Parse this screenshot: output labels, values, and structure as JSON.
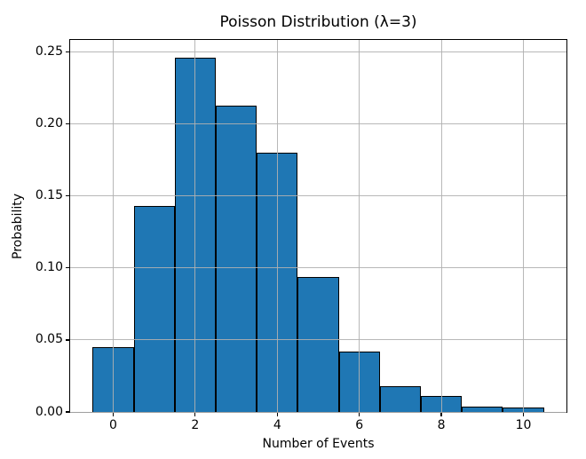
{
  "chart_data": {
    "type": "bar",
    "title": "Poisson Distribution (λ=3)",
    "xlabel": "Number of Events",
    "ylabel": "Probability",
    "categories": [
      0,
      1,
      2,
      3,
      4,
      5,
      6,
      7,
      8,
      9,
      10
    ],
    "values": [
      0.045,
      0.143,
      0.246,
      0.213,
      0.18,
      0.094,
      0.042,
      0.018,
      0.011,
      0.004,
      0.003
    ],
    "bar_width": 1.0,
    "bar_align": "center",
    "xlim": [
      -1.05,
      11.05
    ],
    "ylim": [
      0,
      0.2585
    ],
    "x_ticks": [
      0,
      2,
      4,
      6,
      8,
      10
    ],
    "x_tick_labels": [
      "0",
      "2",
      "4",
      "6",
      "8",
      "10"
    ],
    "y_ticks": [
      0.0,
      0.05,
      0.1,
      0.15,
      0.2,
      0.25
    ],
    "y_tick_labels": [
      "0.00",
      "0.05",
      "0.10",
      "0.15",
      "0.20",
      "0.25"
    ],
    "grid": true,
    "grid_above_bars": true,
    "legend": "none",
    "colors": {
      "bar_fill": "#1f77b4",
      "bar_edge": "#000000",
      "grid": "#b0b0b0",
      "spine": "#000000",
      "text": "#000000",
      "background": "#ffffff"
    }
  }
}
